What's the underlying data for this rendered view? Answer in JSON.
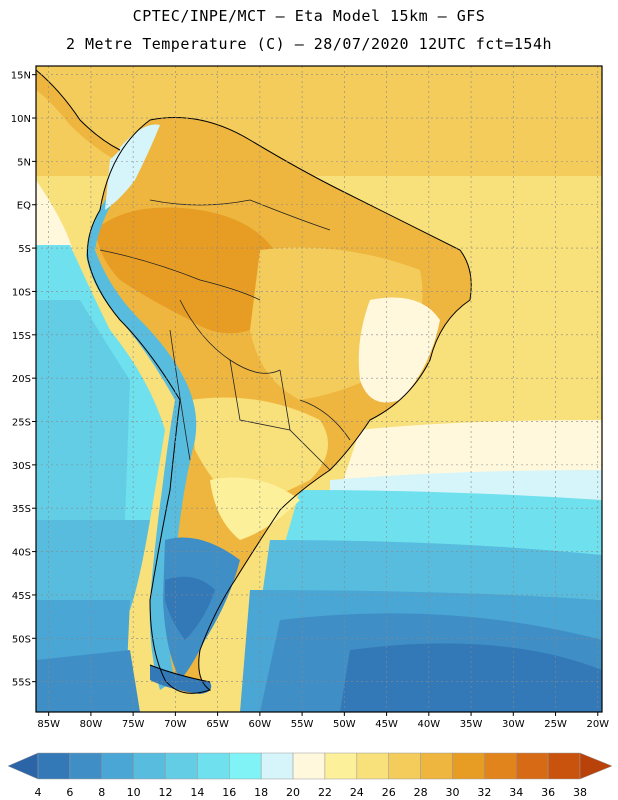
{
  "header": {
    "title_line1": "CPTEC/INPE/MCT –  Eta Model 15km – GFS",
    "title_line2": "2 Metre Temperature (C) – 28/07/2020 12UTC fct=154h"
  },
  "map": {
    "lat_labels": [
      "15N",
      "10N",
      "5N",
      "EQ",
      "5S",
      "10S",
      "15S",
      "20S",
      "25S",
      "30S",
      "35S",
      "40S",
      "45S",
      "50S",
      "55S"
    ],
    "lon_labels": [
      "85W",
      "80W",
      "75W",
      "70W",
      "65W",
      "60W",
      "55W",
      "50W",
      "45W",
      "40W",
      "35W",
      "30W",
      "25W",
      "20W"
    ],
    "lat_values": [
      15,
      10,
      5,
      0,
      -5,
      -10,
      -15,
      -20,
      -25,
      -30,
      -35,
      -40,
      -45,
      -50,
      -55
    ],
    "lon_values": [
      -85,
      -80,
      -75,
      -70,
      -65,
      -60,
      -55,
      -50,
      -45,
      -40,
      -35,
      -30,
      -25,
      -20
    ]
  },
  "colorbar": {
    "labels": [
      "4",
      "6",
      "8",
      "10",
      "12",
      "14",
      "16",
      "18",
      "20",
      "22",
      "24",
      "26",
      "28",
      "30",
      "32",
      "34",
      "36",
      "38"
    ],
    "colors": [
      "#2c64a8",
      "#3379b8",
      "#3f8fc6",
      "#4aa6d4",
      "#58bcde",
      "#63cde6",
      "#6fe0ee",
      "#7ff3f6",
      "#d6f5fb",
      "#fff8dc",
      "#fdf09a",
      "#f8e07a",
      "#f4cc5c",
      "#eeb63e",
      "#e79c24",
      "#e2841c",
      "#d76a14",
      "#c9530c",
      "#b8420a"
    ]
  }
}
